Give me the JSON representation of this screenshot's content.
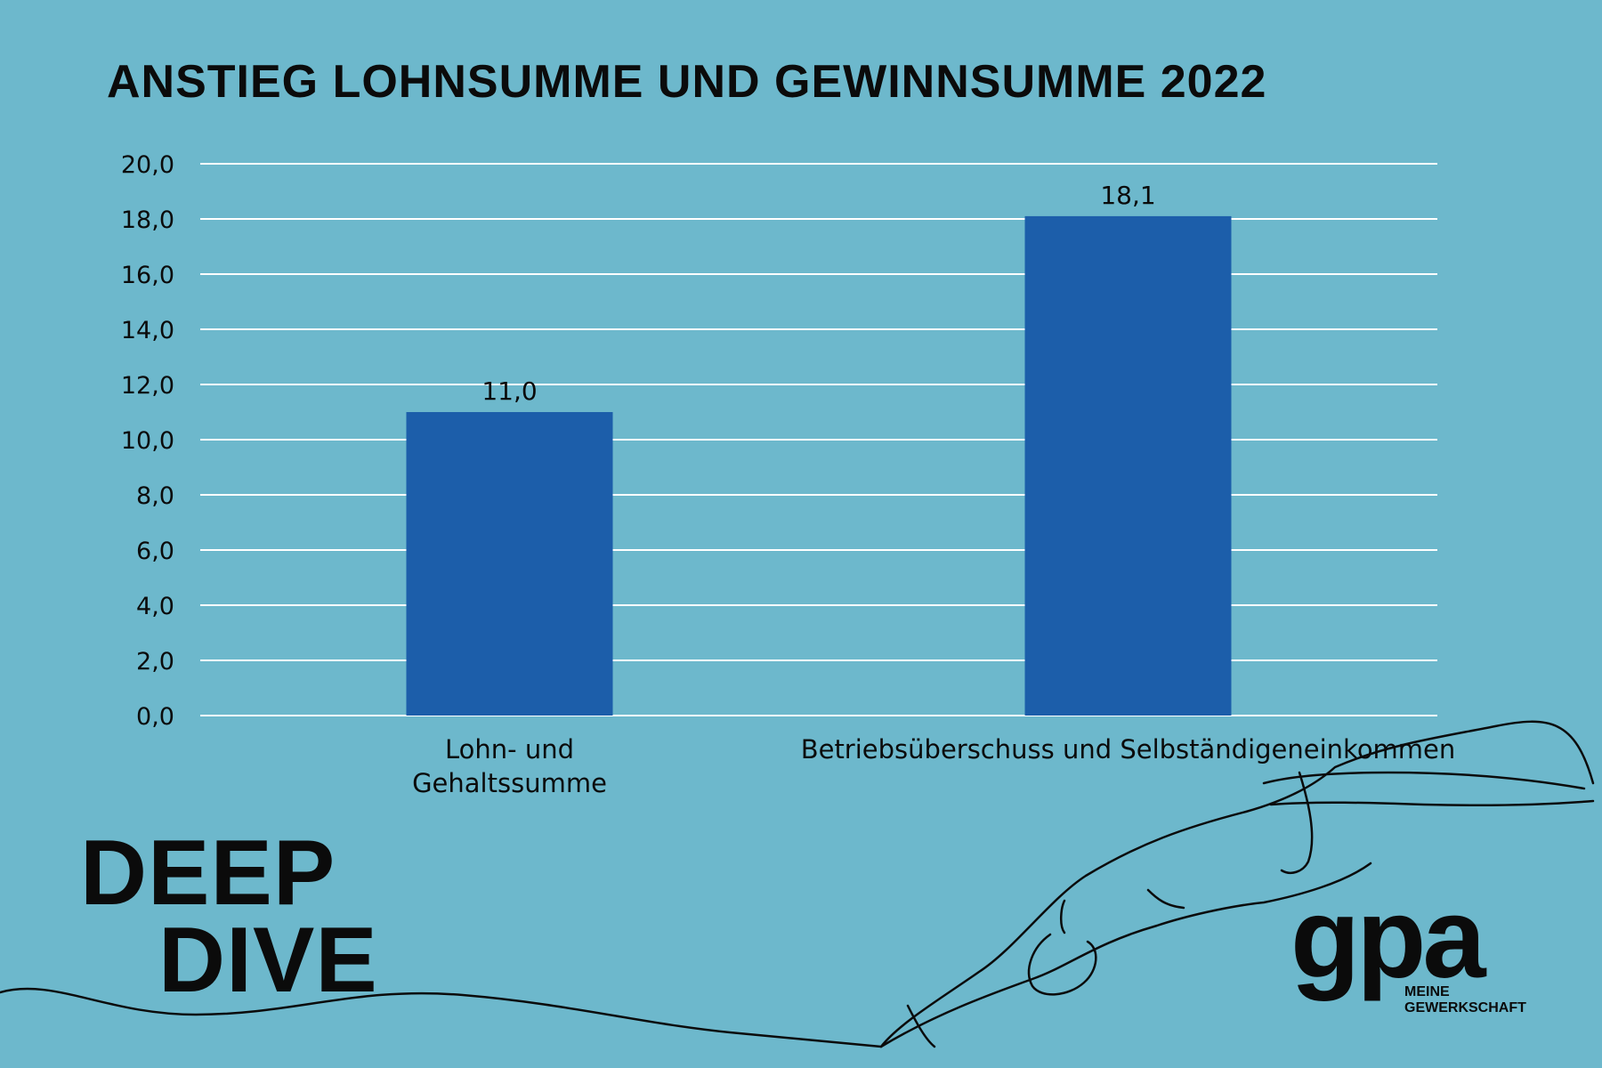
{
  "chart_data": {
    "type": "bar",
    "title": "ANSTIEG LOHNSUMME UND GEWINNSUMME 2022",
    "categories": [
      [
        "Lohn- und",
        "Gehaltssumme"
      ],
      [
        "Betriebsüberschuss und Selbständigeneinkommen"
      ]
    ],
    "values": [
      11.0,
      18.1
    ],
    "value_labels": [
      "11,0",
      "18,1"
    ],
    "ylim": [
      0,
      20
    ],
    "y_ticks": [
      "0,0",
      "2,0",
      "4,0",
      "6,0",
      "8,0",
      "10,0",
      "12,0",
      "14,0",
      "16,0",
      "18,0",
      "20,0"
    ],
    "grid": true,
    "bar_color": "#1c5eaa",
    "grid_color": "#ffffff"
  },
  "branding": {
    "deep_line1": "DEEP",
    "deep_line2": "DIVE",
    "logo_text": "gpa",
    "logo_sub_line1": "MEINE",
    "logo_sub_line2": "GEWERKSCHAFT"
  },
  "colors": {
    "background": "#6db8cc",
    "text": "#0b0b0b"
  }
}
